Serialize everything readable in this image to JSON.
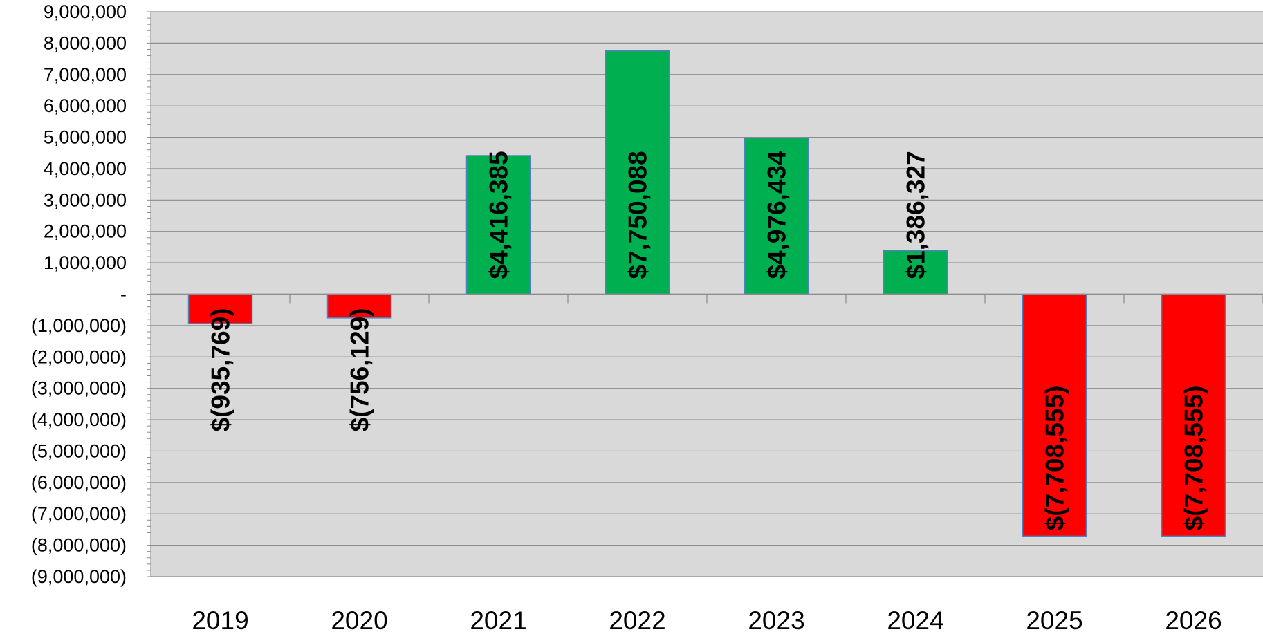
{
  "chart_data": {
    "type": "bar",
    "title": "",
    "xlabel": "",
    "ylabel": "",
    "categories": [
      "2019",
      "2020",
      "2021",
      "2022",
      "2023",
      "2024",
      "2025",
      "2026"
    ],
    "values": [
      -935769,
      -756129,
      4416385,
      7750088,
      4976434,
      1386327,
      -7708555,
      -7708555
    ],
    "data_labels": [
      "$(935,769)",
      "$(756,129)",
      "$4,416,385",
      "$7,750,088",
      "$4,976,434",
      "$1,386,327",
      "$(7,708,555)",
      "$(7,708,555)"
    ],
    "ylim": [
      -9000000,
      9000000
    ],
    "y_ticks": [
      9000000,
      8000000,
      7000000,
      6000000,
      5000000,
      4000000,
      3000000,
      2000000,
      1000000,
      0,
      -1000000,
      -2000000,
      -3000000,
      -4000000,
      -5000000,
      -6000000,
      -7000000,
      -8000000,
      -9000000
    ],
    "y_tick_labels": [
      "9,000,000",
      "8,000,000",
      "7,000,000",
      "6,000,000",
      "5,000,000",
      "4,000,000",
      "3,000,000",
      "2,000,000",
      "1,000,000",
      "-",
      "(1,000,000)",
      "(2,000,000)",
      "(3,000,000)",
      "(4,000,000)",
      "(5,000,000)",
      "(6,000,000)",
      "(7,000,000)",
      "(8,000,000)",
      "(9,000,000)"
    ],
    "grid": true,
    "legend": "none",
    "colors": {
      "positive": "#00b050",
      "negative": "#ff0000",
      "bar_border": "#4f81bd",
      "plot_background": "#d9d9d9",
      "gridline": "#8c8c8c"
    }
  }
}
